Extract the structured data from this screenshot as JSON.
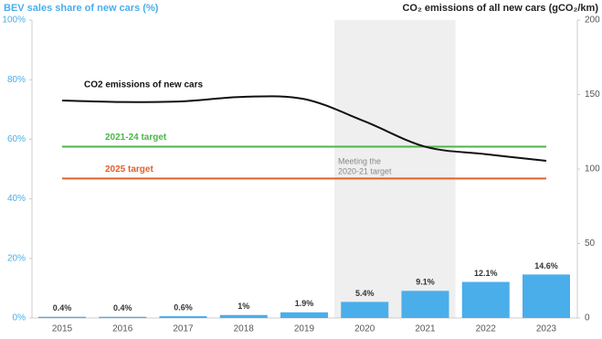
{
  "chart_data": {
    "type": "bar",
    "y_label": "BEV sales share of new cars (%)",
    "y2_label": "CO₂ emissions of all new cars (gCO₂/km)",
    "categories": [
      "2015",
      "2016",
      "2017",
      "2018",
      "2019",
      "2020",
      "2021",
      "2022",
      "2023"
    ],
    "series": [
      {
        "name": "BEV sales share",
        "type": "bar",
        "color": "#4aaeea",
        "values": [
          0.4,
          0.4,
          0.6,
          1,
          1.9,
          5.4,
          9.1,
          12.1,
          14.6
        ],
        "value_labels": [
          "0.4%",
          "0.4%",
          "0.6%",
          "1%",
          "1.9%",
          "5.4%",
          "9.1%",
          "12.1%",
          "14.6%"
        ]
      },
      {
        "name": "CO2 emissions of new cars",
        "type": "line",
        "axis": "y2",
        "color": "#111111",
        "values": [
          146,
          145,
          145.5,
          148.5,
          147,
          132,
          115,
          110,
          105.5
        ]
      }
    ],
    "reference_lines": [
      {
        "name": "2021-24 target",
        "value": 115,
        "color": "#4cb648",
        "axis": "y2"
      },
      {
        "name": "2025 target",
        "value": 93.6,
        "color": "#e0622a",
        "axis": "y2"
      }
    ],
    "highlight": [
      "2020",
      "2021"
    ],
    "annotation": [
      "Meeting the",
      "2020-21 target"
    ],
    "ylim": [
      0,
      100
    ],
    "yticks": [
      {
        "value": 0,
        "label": "0%"
      },
      {
        "value": 20,
        "label": "20%"
      },
      {
        "value": 40,
        "label": "40%"
      },
      {
        "value": 60,
        "label": "60%"
      },
      {
        "value": 80,
        "label": "80%"
      },
      {
        "value": 100,
        "label": "100%"
      }
    ],
    "y2lim": [
      0,
      200
    ],
    "y2ticks": [
      0,
      50,
      100,
      150,
      200
    ]
  }
}
